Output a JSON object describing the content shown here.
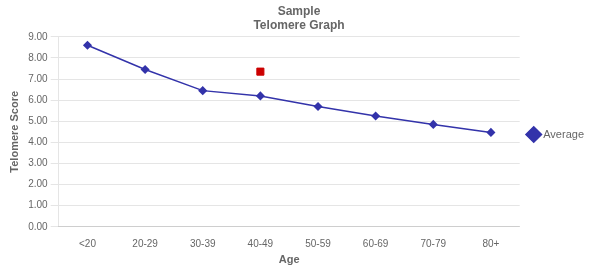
{
  "chart_data": {
    "type": "line",
    "title": [
      "Sample",
      "Telomere Graph"
    ],
    "x_label": "Age",
    "y_label": "Telomere Score",
    "categories": [
      "<20",
      "20-29",
      "30-39",
      "40-49",
      "50-59",
      "60-69",
      "70-79",
      "80+"
    ],
    "series": [
      {
        "name": "Average",
        "color": "#3333AA",
        "marker": "diamond",
        "line_style": "solid",
        "values": [
          8.6,
          7.45,
          6.45,
          6.2,
          5.7,
          5.25,
          4.85,
          4.47
        ]
      },
      {
        "color": "#CC0000",
        "marker": "square",
        "line_style": "none",
        "values": [
          null,
          null,
          null,
          7.35,
          null,
          null,
          null,
          null
        ]
      }
    ],
    "ylim": [
      0.0,
      9.0
    ],
    "yticks": [
      {
        "value": 0,
        "label": "0.00"
      },
      {
        "value": 1,
        "label": "1.00"
      },
      {
        "value": 2,
        "label": "2.00"
      },
      {
        "value": 3,
        "label": "3.00"
      },
      {
        "value": 4,
        "label": "4.00"
      },
      {
        "value": 5,
        "label": "5.00"
      },
      {
        "value": 6,
        "label": "6.00"
      },
      {
        "value": 7,
        "label": "7.00"
      },
      {
        "value": 8,
        "label": "8.00"
      },
      {
        "value": 9,
        "label": "9.00"
      }
    ],
    "grid": true,
    "legend": "right"
  }
}
